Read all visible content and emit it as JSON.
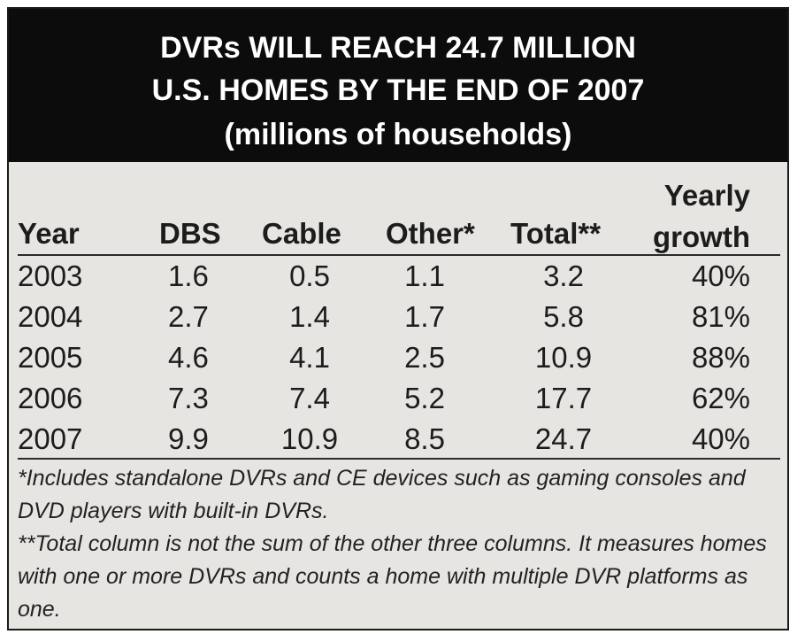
{
  "title": {
    "line1": "DVRs WILL REACH 24.7 MILLION",
    "line2": "U.S. HOMES BY THE END OF 2007",
    "line3": "(millions of households)"
  },
  "table": {
    "headers": {
      "year": "Year",
      "dbs": "DBS",
      "cable": "Cable",
      "other": "Other*",
      "total": "Total**",
      "growth_line1": "Yearly",
      "growth_line2": "growth"
    },
    "rows": [
      {
        "year": "2003",
        "dbs": "1.6",
        "cable": "0.5",
        "other": "1.1",
        "total": "3.2",
        "growth": "40%"
      },
      {
        "year": "2004",
        "dbs": "2.7",
        "cable": "1.4",
        "other": "1.7",
        "total": "5.8",
        "growth": "81%"
      },
      {
        "year": "2005",
        "dbs": "4.6",
        "cable": "4.1",
        "other": "2.5",
        "total": "10.9",
        "growth": "88%"
      },
      {
        "year": "2006",
        "dbs": "7.3",
        "cable": "7.4",
        "other": "5.2",
        "total": "17.7",
        "growth": "62%"
      },
      {
        "year": "2007",
        "dbs": "9.9",
        "cable": "10.9",
        "other": "8.5",
        "total": "24.7",
        "growth": "40%"
      }
    ]
  },
  "notes": {
    "note1": "*Includes standalone DVRs and CE devices such as gaming consoles and DVD players with built-in DVRs.",
    "note2": "**Total column is not the sum of the other three columns. It measures homes with one or more DVRs and counts a home with multiple DVR platforms as one."
  },
  "colors": {
    "title_background": "#0c0c0c",
    "title_text": "#ffffff",
    "panel_background": "#e7e5e2",
    "text": "#1c1c1c"
  }
}
